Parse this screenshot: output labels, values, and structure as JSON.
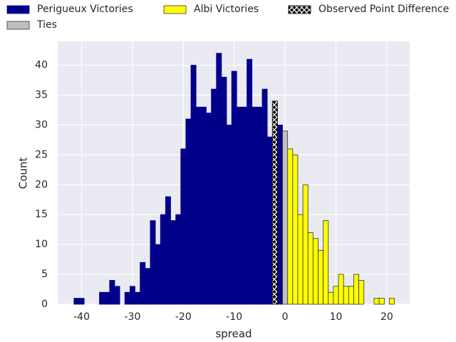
{
  "chart_data": {
    "type": "histogram",
    "xlabel": "spread",
    "ylabel": "Count",
    "bins": [
      -41.5,
      -40.5,
      -39.5,
      -38.5,
      -37.5,
      -36.5,
      -35.5,
      -34.5,
      -33.5,
      -32.5,
      -31.5,
      -30.5,
      -29.5,
      -28.5,
      -27.5,
      -26.5,
      -25.5,
      -24.5,
      -23.5,
      -22.5,
      -21.5,
      -20.5,
      -19.5,
      -18.5,
      -17.5,
      -16.5,
      -15.5,
      -14.5,
      -13.5,
      -12.5,
      -11.5,
      -10.5,
      -9.5,
      -8.5,
      -7.5,
      -6.5,
      -5.5,
      -4.5,
      -3.5,
      -2.5,
      -1.5,
      -0.5,
      0.5,
      1.5,
      2.5,
      3.5,
      4.5,
      5.5,
      6.5,
      7.5,
      8.5,
      9.5,
      10.5,
      11.5,
      12.5,
      13.5,
      14.5,
      15.5,
      16.5,
      17.5,
      18.5,
      19.5,
      20.5,
      21.5
    ],
    "series": [
      {
        "name": "Perigueux Victories",
        "color": "#00008b",
        "values": [
          1,
          1,
          0,
          0,
          0,
          2,
          2,
          4,
          3,
          0,
          2,
          3,
          2,
          7,
          6,
          14,
          10,
          15,
          18,
          14,
          15,
          26,
          31,
          40,
          33,
          33,
          32,
          36,
          42,
          38,
          30,
          39,
          33,
          33,
          41,
          33,
          33,
          36,
          28,
          null,
          30,
          null,
          null,
          null,
          null,
          null,
          null,
          null,
          null,
          null,
          null,
          null,
          null,
          null,
          null,
          null,
          null,
          null,
          null,
          null,
          null,
          null,
          null
        ]
      },
      {
        "name": "Albi Victories",
        "color": "#ffff00",
        "values": [
          null,
          null,
          null,
          null,
          null,
          null,
          null,
          null,
          null,
          null,
          null,
          null,
          null,
          null,
          null,
          null,
          null,
          null,
          null,
          null,
          null,
          null,
          null,
          null,
          null,
          null,
          null,
          null,
          null,
          null,
          null,
          null,
          null,
          null,
          null,
          null,
          null,
          null,
          null,
          null,
          null,
          null,
          26,
          25,
          15,
          20,
          12,
          11,
          9,
          14,
          2,
          3,
          5,
          3,
          3,
          5,
          4,
          0,
          0,
          1,
          1,
          0,
          1
        ]
      },
      {
        "name": "Observed Point Difference",
        "color": "#000000",
        "hatch": "x",
        "values": [
          null,
          null,
          null,
          null,
          null,
          null,
          null,
          null,
          null,
          null,
          null,
          null,
          null,
          null,
          null,
          null,
          null,
          null,
          null,
          null,
          null,
          null,
          null,
          null,
          null,
          null,
          null,
          null,
          null,
          null,
          null,
          null,
          null,
          null,
          null,
          null,
          null,
          null,
          null,
          34,
          null,
          null,
          null,
          null,
          null,
          null,
          null,
          null,
          null,
          null,
          null,
          null,
          null,
          null,
          null,
          null,
          null,
          null,
          null,
          null,
          null,
          null,
          null
        ]
      },
      {
        "name": "Ties",
        "color": "#bfbfbf",
        "values": [
          null,
          null,
          null,
          null,
          null,
          null,
          null,
          null,
          null,
          null,
          null,
          null,
          null,
          null,
          null,
          null,
          null,
          null,
          null,
          null,
          null,
          null,
          null,
          null,
          null,
          null,
          null,
          null,
          null,
          null,
          null,
          null,
          null,
          null,
          null,
          null,
          null,
          null,
          null,
          null,
          null,
          29,
          null,
          null,
          null,
          null,
          null,
          null,
          null,
          null,
          null,
          null,
          null,
          null,
          null,
          null,
          null,
          null,
          null,
          null,
          null,
          null,
          null
        ]
      }
    ],
    "xlim": [
      -44.7,
      24.5
    ],
    "ylim": [
      0,
      44
    ],
    "xticks": [
      -40,
      -30,
      -20,
      -10,
      0,
      10,
      20
    ],
    "yticks": [
      0,
      5,
      10,
      15,
      20,
      25,
      30,
      35,
      40
    ],
    "grid": true
  }
}
